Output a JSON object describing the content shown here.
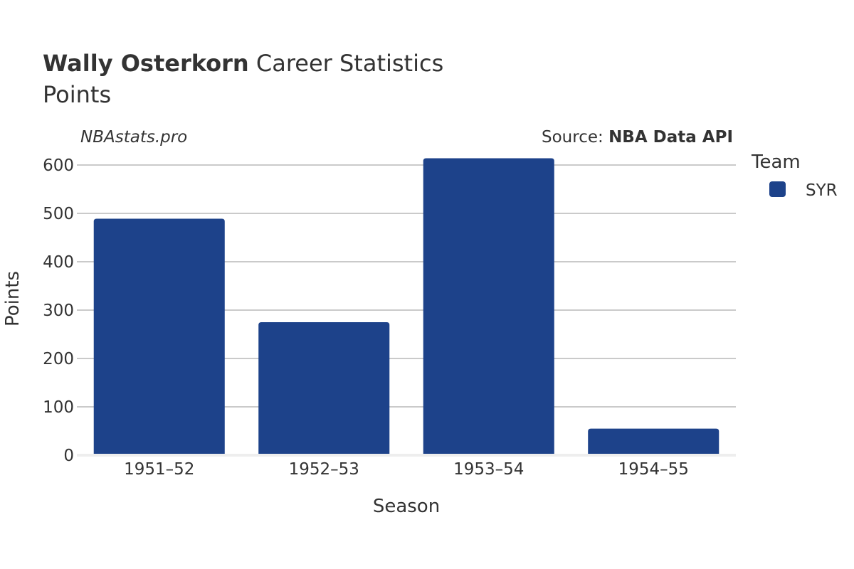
{
  "header": {
    "player_name": "Wally Osterkorn",
    "title_rest": " Career Statistics",
    "subtitle": "Points",
    "site": "NBAstats.pro",
    "source_prefix": "Source: ",
    "source_name": "NBA Data API"
  },
  "legend": {
    "title": "Team",
    "items": [
      {
        "label": "SYR",
        "color": "#1d428a"
      }
    ]
  },
  "chart_data": {
    "type": "bar",
    "categories": [
      "1951–52",
      "1952–53",
      "1953–54",
      "1954–55"
    ],
    "series": [
      {
        "name": "SYR",
        "color": "#1d428a",
        "values": [
          489,
          275,
          614,
          55
        ]
      }
    ],
    "title": "Wally Osterkorn Career Statistics",
    "subtitle": "Points",
    "xlabel": "Season",
    "ylabel": "Points",
    "ylim": [
      0,
      620
    ],
    "yticks": [
      0,
      100,
      200,
      300,
      400,
      500,
      600
    ],
    "grid": true,
    "legend_position": "right"
  }
}
